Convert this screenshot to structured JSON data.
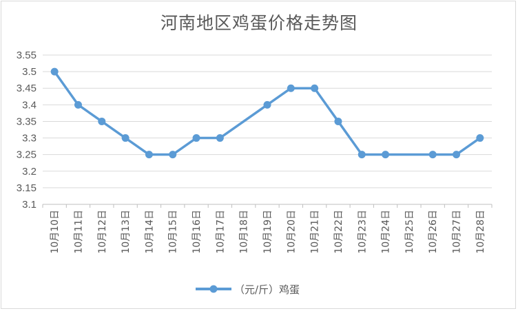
{
  "chart_data": {
    "type": "line",
    "title": "河南地区鸡蛋价格走势图",
    "categories": [
      "10月10日",
      "10月11日",
      "10月12日",
      "10月13日",
      "10月14日",
      "10月15日",
      "10月16日",
      "10月17日",
      "10月18日",
      "10月19日",
      "10月20日",
      "10月21日",
      "10月22日",
      "10月23日",
      "10月24日",
      "10月25日",
      "10月26日",
      "10月27日",
      "10月28日"
    ],
    "series": [
      {
        "name": "（元/斤）鸡蛋",
        "color": "#5b9bd5",
        "values": [
          3.5,
          3.4,
          3.35,
          3.3,
          3.25,
          3.25,
          3.3,
          3.3,
          null,
          3.4,
          3.45,
          3.45,
          3.35,
          3.25,
          3.25,
          null,
          3.25,
          3.25,
          3.3
        ],
        "markers": [
          true,
          true,
          true,
          true,
          true,
          true,
          true,
          true,
          false,
          true,
          true,
          true,
          true,
          true,
          true,
          false,
          true,
          true,
          true
        ]
      }
    ],
    "yticks": [
      "3.1",
      "3.15",
      "3.2",
      "3.25",
      "3.3",
      "3.35",
      "3.4",
      "3.45",
      "3.5",
      "3.55"
    ],
    "ylim": [
      3.1,
      3.55
    ],
    "grid": true,
    "legend": "bottom",
    "xlabel": "",
    "ylabel": ""
  }
}
